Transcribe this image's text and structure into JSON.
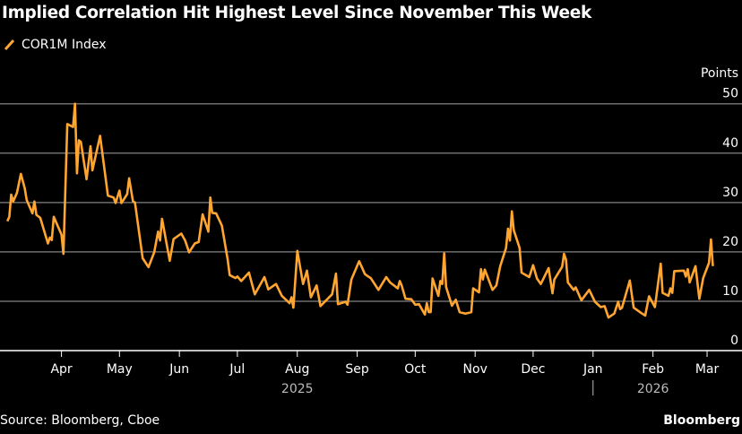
{
  "title": "Implied Correlation Hit Highest Level Since November This Week",
  "legend": {
    "label": "COR1M Index"
  },
  "source": "Source: Bloomberg, Cboe",
  "brand": "Bloomberg",
  "colors": {
    "line": "#ffa530",
    "grid": "#6e6e6e",
    "axis": "#ffffff",
    "background": "#000000"
  },
  "chart_data": {
    "type": "line",
    "title": "Implied Correlation Hit Highest Level Since November This Week",
    "ylabel": "Points",
    "ylim": [
      0,
      50
    ],
    "yticks": [
      0,
      10,
      20,
      30,
      40,
      50
    ],
    "grid": true,
    "legend_placement": "top-left",
    "xticks": [
      {
        "date": "2025-04-01",
        "label": "Apr"
      },
      {
        "date": "2025-05-01",
        "label": "May"
      },
      {
        "date": "2025-06-01",
        "label": "Jun"
      },
      {
        "date": "2025-07-01",
        "label": "Jul"
      },
      {
        "date": "2025-08-01",
        "label": "Aug"
      },
      {
        "date": "2025-09-01",
        "label": "Sep"
      },
      {
        "date": "2025-10-01",
        "label": "Oct"
      },
      {
        "date": "2025-11-01",
        "label": "Nov"
      },
      {
        "date": "2025-12-01",
        "label": "Dec"
      },
      {
        "date": "2026-01-01",
        "label": "Jan"
      },
      {
        "date": "2026-02-01",
        "label": "Feb"
      },
      {
        "date": "2026-03-01",
        "label": "Mar"
      }
    ],
    "year_labels": [
      {
        "date": "2025-08-01",
        "label": "2025"
      },
      {
        "date": "2026-02-01",
        "label": "2026"
      }
    ],
    "series": [
      {
        "name": "COR1M Index",
        "points": [
          [
            "2025-03-04",
            26.2
          ],
          [
            "2025-03-05",
            27.1
          ],
          [
            "2025-03-06",
            31.6
          ],
          [
            "2025-03-07",
            30.2
          ],
          [
            "2025-03-09",
            32.0
          ],
          [
            "2025-03-11",
            35.8
          ],
          [
            "2025-03-13",
            32.9
          ],
          [
            "2025-03-14",
            30.5
          ],
          [
            "2025-03-17",
            27.8
          ],
          [
            "2025-03-18",
            30.2
          ],
          [
            "2025-03-19",
            27.5
          ],
          [
            "2025-03-21",
            26.9
          ],
          [
            "2025-03-25",
            21.7
          ],
          [
            "2025-03-26",
            22.9
          ],
          [
            "2025-03-27",
            22.4
          ],
          [
            "2025-03-28",
            27.1
          ],
          [
            "2025-04-01",
            23.5
          ],
          [
            "2025-04-02",
            19.6
          ],
          [
            "2025-04-04",
            45.9
          ],
          [
            "2025-04-07",
            45.3
          ],
          [
            "2025-04-08",
            50.0
          ],
          [
            "2025-04-09",
            35.9
          ],
          [
            "2025-04-10",
            42.6
          ],
          [
            "2025-04-11",
            42.3
          ],
          [
            "2025-04-14",
            34.7
          ],
          [
            "2025-04-16",
            41.4
          ],
          [
            "2025-04-17",
            36.5
          ],
          [
            "2025-04-21",
            43.5
          ],
          [
            "2025-04-25",
            31.4
          ],
          [
            "2025-04-28",
            31.0
          ],
          [
            "2025-04-29",
            29.9
          ],
          [
            "2025-05-01",
            32.4
          ],
          [
            "2025-05-02",
            29.9
          ],
          [
            "2025-05-05",
            31.7
          ],
          [
            "2025-05-06",
            34.9
          ],
          [
            "2025-05-08",
            30.2
          ],
          [
            "2025-05-09",
            30.0
          ],
          [
            "2025-05-13",
            18.7
          ],
          [
            "2025-05-16",
            16.9
          ],
          [
            "2025-05-19",
            19.9
          ],
          [
            "2025-05-21",
            24.1
          ],
          [
            "2025-05-22",
            22.3
          ],
          [
            "2025-05-23",
            26.7
          ],
          [
            "2025-05-27",
            18.2
          ],
          [
            "2025-05-29",
            22.6
          ],
          [
            "2025-06-02",
            23.7
          ],
          [
            "2025-06-04",
            22.3
          ],
          [
            "2025-06-06",
            19.9
          ],
          [
            "2025-06-09",
            21.7
          ],
          [
            "2025-06-11",
            22.0
          ],
          [
            "2025-06-13",
            27.6
          ],
          [
            "2025-06-16",
            24.1
          ],
          [
            "2025-06-17",
            31.0
          ],
          [
            "2025-06-18",
            27.9
          ],
          [
            "2025-06-20",
            27.8
          ],
          [
            "2025-06-23",
            25.3
          ],
          [
            "2025-06-26",
            18.4
          ],
          [
            "2025-06-27",
            15.3
          ],
          [
            "2025-06-30",
            14.7
          ],
          [
            "2025-07-01",
            15.0
          ],
          [
            "2025-07-03",
            14.1
          ],
          [
            "2025-07-07",
            15.8
          ],
          [
            "2025-07-10",
            11.4
          ],
          [
            "2025-07-15",
            14.9
          ],
          [
            "2025-07-17",
            12.4
          ],
          [
            "2025-07-21",
            13.5
          ],
          [
            "2025-07-24",
            11.1
          ],
          [
            "2025-07-28",
            9.6
          ],
          [
            "2025-07-29",
            10.8
          ],
          [
            "2025-07-30",
            8.7
          ],
          [
            "2025-08-01",
            20.2
          ],
          [
            "2025-08-04",
            13.5
          ],
          [
            "2025-08-06",
            16.2
          ],
          [
            "2025-08-08",
            10.8
          ],
          [
            "2025-08-11",
            13.2
          ],
          [
            "2025-08-13",
            9.0
          ],
          [
            "2025-08-19",
            11.4
          ],
          [
            "2025-08-21",
            15.6
          ],
          [
            "2025-08-22",
            9.4
          ],
          [
            "2025-08-26",
            9.9
          ],
          [
            "2025-08-27",
            9.3
          ],
          [
            "2025-08-29",
            14.4
          ],
          [
            "2025-09-02",
            18.1
          ],
          [
            "2025-09-05",
            15.5
          ],
          [
            "2025-09-06",
            15.2
          ],
          [
            "2025-09-08",
            14.7
          ],
          [
            "2025-09-12",
            12.3
          ],
          [
            "2025-09-16",
            14.9
          ],
          [
            "2025-09-18",
            13.8
          ],
          [
            "2025-09-22",
            12.6
          ],
          [
            "2025-09-23",
            14.1
          ],
          [
            "2025-09-24",
            13.2
          ],
          [
            "2025-09-26",
            10.5
          ],
          [
            "2025-09-29",
            10.4
          ],
          [
            "2025-10-01",
            9.3
          ],
          [
            "2025-10-03",
            9.4
          ],
          [
            "2025-10-06",
            7.3
          ],
          [
            "2025-10-07",
            9.6
          ],
          [
            "2025-10-08",
            7.8
          ],
          [
            "2025-10-09",
            7.8
          ],
          [
            "2025-10-10",
            14.6
          ],
          [
            "2025-10-13",
            11.1
          ],
          [
            "2025-10-14",
            14.1
          ],
          [
            "2025-10-15",
            13.5
          ],
          [
            "2025-10-16",
            19.7
          ],
          [
            "2025-10-17",
            12.9
          ],
          [
            "2025-10-20",
            9.1
          ],
          [
            "2025-10-22",
            10.3
          ],
          [
            "2025-10-24",
            7.8
          ],
          [
            "2025-10-27",
            7.5
          ],
          [
            "2025-10-30",
            7.8
          ],
          [
            "2025-10-31",
            12.6
          ],
          [
            "2025-11-03",
            11.8
          ],
          [
            "2025-11-04",
            16.5
          ],
          [
            "2025-11-05",
            14.4
          ],
          [
            "2025-11-06",
            16.4
          ],
          [
            "2025-11-10",
            12.3
          ],
          [
            "2025-11-12",
            13.2
          ],
          [
            "2025-11-14",
            17.1
          ],
          [
            "2025-11-17",
            20.8
          ],
          [
            "2025-11-18",
            24.7
          ],
          [
            "2025-11-19",
            22.3
          ],
          [
            "2025-11-20",
            28.2
          ],
          [
            "2025-11-21",
            24.4
          ],
          [
            "2025-11-24",
            20.8
          ],
          [
            "2025-11-25",
            15.8
          ],
          [
            "2025-11-29",
            14.9
          ],
          [
            "2025-12-01",
            17.3
          ],
          [
            "2025-12-03",
            14.6
          ],
          [
            "2025-12-05",
            13.5
          ],
          [
            "2025-12-09",
            16.7
          ],
          [
            "2025-12-11",
            11.6
          ],
          [
            "2025-12-12",
            14.4
          ],
          [
            "2025-12-16",
            17.0
          ],
          [
            "2025-12-17",
            19.6
          ],
          [
            "2025-12-18",
            18.4
          ],
          [
            "2025-12-19",
            13.8
          ],
          [
            "2025-12-22",
            12.3
          ],
          [
            "2025-12-23",
            12.8
          ],
          [
            "2025-12-26",
            10.2
          ],
          [
            "2025-12-30",
            12.3
          ],
          [
            "2026-01-02",
            9.9
          ],
          [
            "2026-01-05",
            8.8
          ],
          [
            "2026-01-07",
            9.0
          ],
          [
            "2026-01-09",
            6.7
          ],
          [
            "2026-01-12",
            7.5
          ],
          [
            "2026-01-14",
            9.9
          ],
          [
            "2026-01-15",
            8.4
          ],
          [
            "2026-01-16",
            8.7
          ],
          [
            "2026-01-20",
            14.2
          ],
          [
            "2026-01-22",
            8.7
          ],
          [
            "2026-01-26",
            7.6
          ],
          [
            "2026-01-28",
            7.1
          ],
          [
            "2026-01-30",
            11.0
          ],
          [
            "2026-02-02",
            8.8
          ],
          [
            "2026-02-05",
            17.6
          ],
          [
            "2026-02-06",
            11.7
          ],
          [
            "2026-02-09",
            11.1
          ],
          [
            "2026-02-10",
            12.6
          ],
          [
            "2026-02-11",
            11.7
          ],
          [
            "2026-02-12",
            16.1
          ],
          [
            "2026-02-17",
            16.2
          ],
          [
            "2026-02-18",
            15.0
          ],
          [
            "2026-02-19",
            16.5
          ],
          [
            "2026-02-20",
            13.8
          ],
          [
            "2026-02-23",
            17.1
          ],
          [
            "2026-02-25",
            10.5
          ],
          [
            "2026-02-27",
            14.7
          ],
          [
            "2026-03-02",
            17.8
          ],
          [
            "2026-03-03",
            22.5
          ],
          [
            "2026-03-04",
            17.1
          ]
        ]
      }
    ]
  }
}
